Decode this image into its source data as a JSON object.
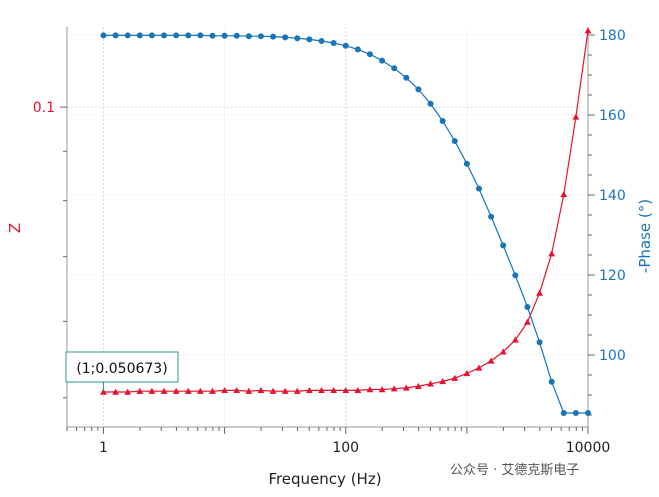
{
  "colors": {
    "z": "#e8112d",
    "phase": "#1a74b8",
    "grid": "#d9d9d9",
    "axis": "#7f7f7f",
    "watermark": "#555555"
  },
  "chart_data": {
    "type": "line",
    "xlabel": "Frequency (Hz)",
    "x_scale": "log",
    "xlim": [
      0.5,
      10000
    ],
    "x_ticks": [
      1,
      100,
      10000
    ],
    "x_tick_labels": [
      "1",
      "100",
      "10000"
    ],
    "y_left": {
      "label": "Z",
      "scale": "log",
      "ylim": [
        0.04664,
        0.12104
      ],
      "ticks": [
        0.1
      ],
      "tick_labels": [
        "0.1"
      ]
    },
    "y_right": {
      "label": "-Phase (°)",
      "scale": "linear",
      "ylim": [
        82,
        182
      ],
      "ticks": [
        100,
        120,
        140,
        160,
        180
      ],
      "tick_labels": [
        "100",
        "120",
        "140",
        "160",
        "180"
      ]
    },
    "grid": true,
    "x": [
      1,
      1.259,
      1.585,
      1.995,
      2.512,
      3.162,
      3.981,
      5.012,
      6.31,
      7.943,
      10,
      12.59,
      15.85,
      19.95,
      25.12,
      31.62,
      39.81,
      50.12,
      63.1,
      79.43,
      100,
      125.9,
      158.5,
      199.5,
      251.2,
      316.2,
      398.1,
      501.2,
      631,
      794.3,
      1000,
      1259,
      1585,
      1995,
      2512,
      3162,
      3981,
      5012,
      6310,
      7943,
      10000
    ],
    "series": [
      {
        "name": "Z",
        "axis": "left",
        "marker": "triangle",
        "values": [
          0.0507,
          0.0507,
          0.0507,
          0.0508,
          0.0508,
          0.0508,
          0.0508,
          0.0508,
          0.0508,
          0.0508,
          0.0509,
          0.0509,
          0.0508,
          0.0509,
          0.0508,
          0.0508,
          0.0508,
          0.0509,
          0.0509,
          0.0509,
          0.0509,
          0.0509,
          0.051,
          0.051,
          0.0511,
          0.0512,
          0.0514,
          0.0517,
          0.052,
          0.0524,
          0.053,
          0.0537,
          0.0546,
          0.0558,
          0.0574,
          0.0599,
          0.0642,
          0.0705,
          0.0812,
          0.0977,
          0.12
        ]
      },
      {
        "name": "-Phase (°)",
        "axis": "right",
        "marker": "circle",
        "values": [
          179.9,
          179.9,
          179.9,
          179.9,
          179.9,
          179.9,
          179.9,
          179.9,
          179.9,
          179.8,
          179.8,
          179.8,
          179.7,
          179.7,
          179.6,
          179.4,
          179.2,
          178.9,
          178.5,
          178,
          177.3,
          176.4,
          175.2,
          173.6,
          171.7,
          169.3,
          166.4,
          162.8,
          158.5,
          153.5,
          147.8,
          141.6,
          134.6,
          127.4,
          119.9,
          112,
          103.2,
          93.3,
          85.5,
          85.5,
          85.5
        ]
      }
    ],
    "annotation": {
      "text": "(1;0.050673)",
      "x": 1,
      "y": 0.050673,
      "series": "Z"
    }
  },
  "watermark": {
    "text": "公众号 · 艾德克斯电子"
  }
}
